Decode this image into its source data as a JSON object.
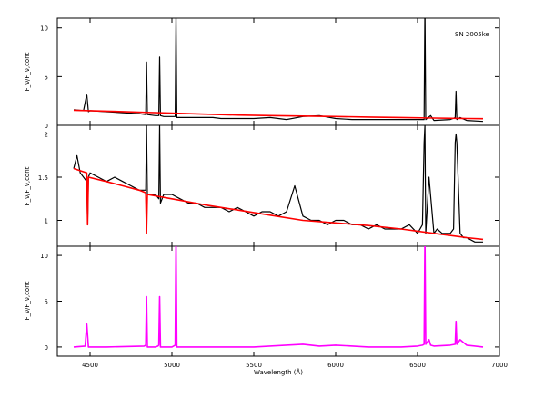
{
  "chart_data": [
    {
      "type": "line",
      "panel": "top",
      "ylabel": "F_ν/F_ν,cont",
      "annotation": "SN 2005ke",
      "xlim": [
        4300,
        7000
      ],
      "ylim": [
        0,
        11
      ],
      "yticks": [
        0,
        5,
        10
      ],
      "series": [
        {
          "color": "#000000",
          "x": [
            4400,
            4460,
            4480,
            4490,
            4500,
            4600,
            4700,
            4800,
            4840,
            4845,
            4850,
            4900,
            4920,
            4925,
            4930,
            4950,
            5000,
            5020,
            5025,
            5030,
            5050,
            5150,
            5250,
            5300,
            5400,
            5500,
            5600,
            5700,
            5800,
            5900,
            6000,
            6100,
            6200,
            6300,
            6400,
            6500,
            6540,
            6545,
            6550,
            6580,
            6600,
            6700,
            6730,
            6735,
            6740,
            6760,
            6800,
            6900
          ],
          "y": [
            1.6,
            1.5,
            3.2,
            1.4,
            1.5,
            1.4,
            1.3,
            1.2,
            1.1,
            6.5,
            1.1,
            1.0,
            1.0,
            7.0,
            1.0,
            0.9,
            0.9,
            0.9,
            11.5,
            0.8,
            0.8,
            0.8,
            0.8,
            0.7,
            0.7,
            0.7,
            0.8,
            0.6,
            0.9,
            1.0,
            0.7,
            0.6,
            0.6,
            0.6,
            0.6,
            0.6,
            0.6,
            12.5,
            0.6,
            1.0,
            0.5,
            0.6,
            0.8,
            3.5,
            0.6,
            0.8,
            0.5,
            0.4
          ]
        },
        {
          "color": "#ff0000",
          "x": [
            4400,
            4600,
            4800,
            5000,
            5200,
            5400,
            5600,
            5800,
            6000,
            6200,
            6400,
            6600,
            6800,
            6900
          ],
          "y": [
            1.55,
            1.45,
            1.35,
            1.25,
            1.15,
            1.05,
            1.0,
            0.95,
            0.9,
            0.85,
            0.8,
            0.75,
            0.7,
            0.68
          ]
        }
      ]
    },
    {
      "type": "line",
      "panel": "middle",
      "ylabel": "F_ν/F_ν,cont",
      "xlim": [
        4300,
        7000
      ],
      "ylim": [
        0.7,
        2.1
      ],
      "yticks": [
        1,
        1.5,
        2
      ],
      "series": [
        {
          "color": "#000000",
          "x": [
            4400,
            4420,
            4440,
            4460,
            4480,
            4485,
            4490,
            4500,
            4550,
            4600,
            4650,
            4700,
            4750,
            4800,
            4840,
            4845,
            4850,
            4900,
            4920,
            4925,
            4930,
            4950,
            5000,
            5050,
            5100,
            5150,
            5200,
            5250,
            5300,
            5350,
            5400,
            5450,
            5500,
            5550,
            5600,
            5650,
            5700,
            5750,
            5800,
            5850,
            5900,
            5950,
            6000,
            6050,
            6100,
            6150,
            6200,
            6250,
            6300,
            6350,
            6400,
            6450,
            6500,
            6530,
            6540,
            6545,
            6550,
            6570,
            6600,
            6620,
            6650,
            6700,
            6720,
            6730,
            6735,
            6740,
            6760,
            6780,
            6800,
            6850,
            6900
          ],
          "y": [
            1.6,
            1.75,
            1.55,
            1.5,
            1.45,
            0.95,
            1.5,
            1.55,
            1.5,
            1.45,
            1.5,
            1.45,
            1.4,
            1.35,
            1.35,
            2.1,
            1.3,
            1.3,
            1.25,
            2.1,
            1.2,
            1.3,
            1.3,
            1.25,
            1.2,
            1.2,
            1.15,
            1.15,
            1.15,
            1.1,
            1.15,
            1.1,
            1.05,
            1.1,
            1.1,
            1.05,
            1.1,
            1.4,
            1.05,
            1.0,
            1.0,
            0.95,
            1.0,
            1.0,
            0.95,
            0.95,
            0.9,
            0.95,
            0.9,
            0.9,
            0.9,
            0.95,
            0.85,
            0.95,
            1.9,
            2.1,
            0.85,
            1.5,
            0.85,
            0.9,
            0.85,
            0.85,
            0.9,
            1.9,
            2.0,
            1.9,
            0.85,
            0.8,
            0.8,
            0.75,
            0.75
          ]
        },
        {
          "color": "#ff0000",
          "x": [
            4400,
            4480,
            4485,
            4490,
            4600,
            4700,
            4800,
            4840,
            4845,
            4850,
            5000,
            5200,
            5400,
            5600,
            5800,
            6000,
            6200,
            6400,
            6600,
            6800,
            6900
          ],
          "y": [
            1.6,
            1.55,
            0.95,
            1.5,
            1.45,
            1.4,
            1.35,
            1.32,
            0.85,
            1.3,
            1.25,
            1.18,
            1.12,
            1.06,
            1.0,
            0.97,
            0.94,
            0.9,
            0.85,
            0.8,
            0.78
          ]
        }
      ]
    },
    {
      "type": "line",
      "panel": "bottom",
      "ylabel": "F_ν/F_ν,cont",
      "xlabel": "Wavelength (Å)",
      "xlim": [
        4300,
        7000
      ],
      "ylim": [
        -1,
        11
      ],
      "yticks": [
        0,
        5,
        10
      ],
      "xticks": [
        4500,
        5000,
        5500,
        6000,
        6500,
        7000
      ],
      "series": [
        {
          "color": "#ff00ff",
          "x": [
            4400,
            4470,
            4480,
            4490,
            4600,
            4830,
            4840,
            4845,
            4850,
            4900,
            4915,
            4920,
            4925,
            4930,
            5000,
            5020,
            5025,
            5030,
            5100,
            5500,
            5800,
            5900,
            6000,
            6200,
            6400,
            6500,
            6530,
            6540,
            6545,
            6550,
            6570,
            6580,
            6600,
            6700,
            6730,
            6735,
            6740,
            6760,
            6800,
            6900
          ],
          "y": [
            0,
            0.1,
            2.5,
            0,
            0,
            0.1,
            0.2,
            5.5,
            0,
            0,
            0.1,
            0.2,
            5.5,
            0,
            0,
            0.2,
            12,
            0,
            0,
            0,
            0.3,
            0.1,
            0.2,
            0,
            0,
            0.1,
            0.2,
            0.3,
            12,
            0.3,
            0.8,
            0.2,
            0.1,
            0.2,
            0.3,
            2.8,
            0.3,
            0.8,
            0.2,
            0
          ]
        }
      ]
    }
  ]
}
